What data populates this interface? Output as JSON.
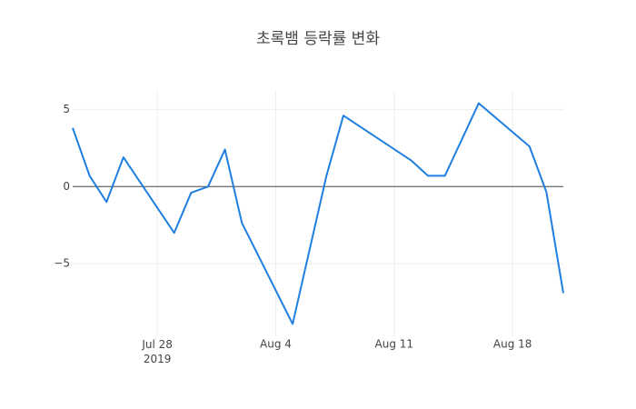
{
  "chart_data": {
    "type": "line",
    "title": "초록뱀 등락률 변화",
    "x": [
      "2019-07-23",
      "2019-07-24",
      "2019-07-25",
      "2019-07-26",
      "2019-07-29",
      "2019-07-30",
      "2019-07-31",
      "2019-08-01",
      "2019-08-02",
      "2019-08-05",
      "2019-08-07",
      "2019-08-08",
      "2019-08-12",
      "2019-08-13",
      "2019-08-14",
      "2019-08-16",
      "2019-08-19",
      "2019-08-20",
      "2019-08-21"
    ],
    "series": [
      {
        "color": "#1f7fe0",
        "values": [
          3.8,
          0.7,
          -1.0,
          1.9,
          -3.0,
          -0.4,
          0.0,
          2.4,
          -2.35,
          -8.9,
          0.7,
          4.6,
          1.7,
          0.7,
          0.7,
          5.4,
          2.6,
          -0.35,
          -6.9
        ]
      }
    ],
    "xlim": [
      "2019-07-23",
      "2019-08-21"
    ],
    "xticks": [
      {
        "value": "2019-07-28",
        "label": "Jul 28\n2019"
      },
      {
        "value": "2019-08-04",
        "label": "Aug 4"
      },
      {
        "value": "2019-08-11",
        "label": "Aug 11"
      },
      {
        "value": "2019-08-18",
        "label": "Aug 18"
      }
    ],
    "ylim": [
      -9.7,
      6.2
    ],
    "yticks": [
      {
        "value": -5,
        "label": "−5"
      },
      0,
      5
    ],
    "grid": true
  }
}
